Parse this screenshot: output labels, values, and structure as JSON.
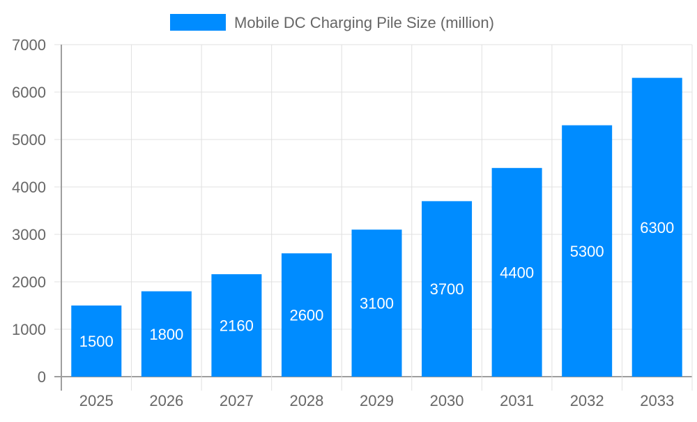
{
  "chart_data": {
    "type": "bar",
    "categories": [
      "2025",
      "2026",
      "2027",
      "2028",
      "2029",
      "2030",
      "2031",
      "2032",
      "2033"
    ],
    "series": [
      {
        "name": "Mobile DC Charging Pile Size (million)",
        "values": [
          1500,
          1800,
          2160,
          2600,
          3100,
          3700,
          4400,
          5300,
          6300
        ]
      }
    ],
    "title": "",
    "xlabel": "",
    "ylabel": "",
    "ylim": [
      0,
      7000
    ],
    "yticks": [
      0,
      1000,
      2000,
      3000,
      4000,
      5000,
      6000,
      7000
    ],
    "grid": true,
    "legend": "top",
    "data_labels": true,
    "colors": {
      "bar": "#008cff",
      "grid": "#e0e0e0",
      "axis": "#9e9e9e",
      "text": "#666666",
      "label": "#ffffff"
    }
  }
}
